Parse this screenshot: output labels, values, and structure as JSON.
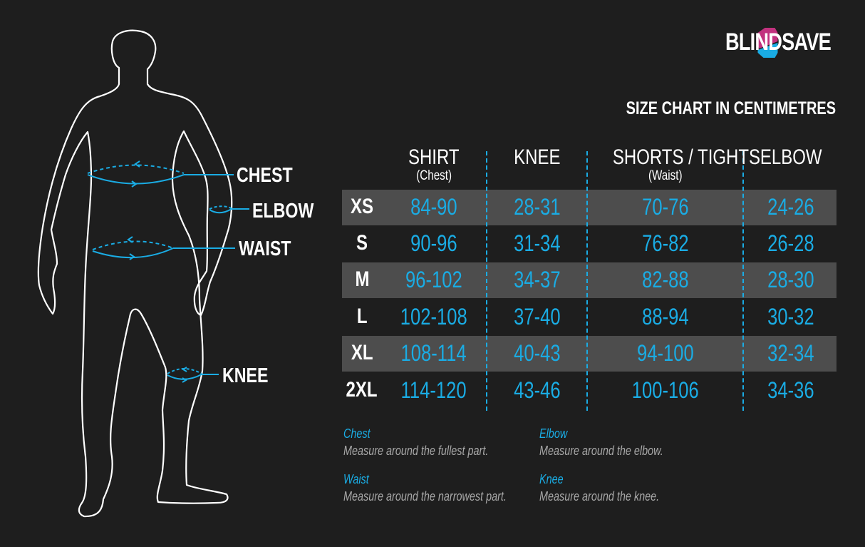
{
  "brand": {
    "name": "BLINDSAVE",
    "colors": {
      "magenta": "#c2327f",
      "blue": "#1aace4"
    }
  },
  "title": "SIZE CHART IN CENTIMETRES",
  "figure_labels": {
    "chest": "CHEST",
    "elbow": "ELBOW",
    "waist": "WAIST",
    "knee": "KNEE"
  },
  "accent_color": "#1aace4",
  "table": {
    "columns": [
      {
        "label": "SHIRT",
        "sub": "(Chest)"
      },
      {
        "label": "KNEE",
        "sub": ""
      },
      {
        "label": "SHORTS / TIGHTS",
        "sub": "(Waist)"
      },
      {
        "label": "ELBOW",
        "sub": ""
      }
    ],
    "rows": [
      {
        "size": "XS",
        "values": [
          "84-90",
          "28-31",
          "70-76",
          "24-26"
        ]
      },
      {
        "size": "S",
        "values": [
          "90-96",
          "31-34",
          "76-82",
          "26-28"
        ]
      },
      {
        "size": "M",
        "values": [
          "96-102",
          "34-37",
          "82-88",
          "28-30"
        ]
      },
      {
        "size": "L",
        "values": [
          "102-108",
          "37-40",
          "88-94",
          "30-32"
        ]
      },
      {
        "size": "XL",
        "values": [
          "108-114",
          "40-43",
          "94-100",
          "32-34"
        ]
      },
      {
        "size": "2XL",
        "values": [
          "114-120",
          "43-46",
          "100-106",
          "34-36"
        ]
      }
    ]
  },
  "notes": [
    {
      "title": "Chest",
      "text": "Measure around the fullest part."
    },
    {
      "title": "Elbow",
      "text": "Measure around the elbow."
    },
    {
      "title": "Waist",
      "text": "Measure around the narrowest part."
    },
    {
      "title": "Knee",
      "text": "Measure around the knee."
    }
  ]
}
